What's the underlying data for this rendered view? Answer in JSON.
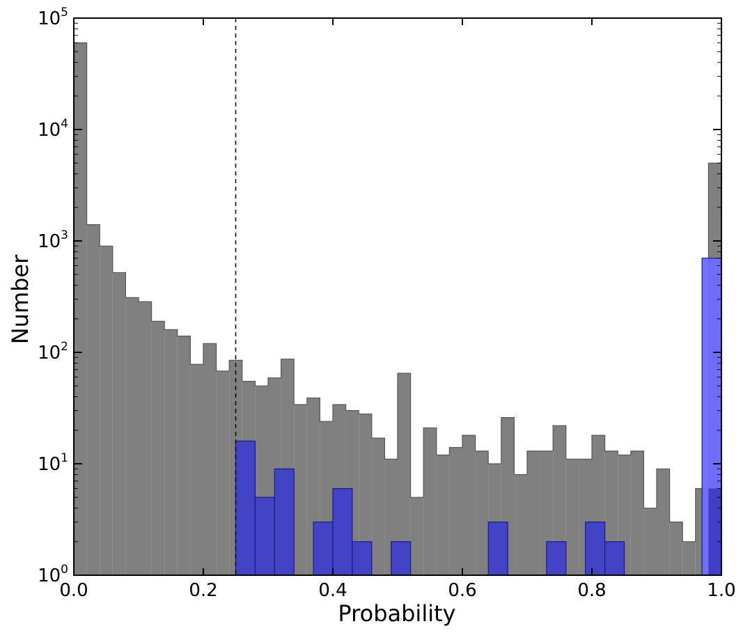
{
  "chart_data": {
    "type": "bar",
    "title": "",
    "xlabel": "Probability",
    "ylabel": "Number",
    "xlim": [
      0.0,
      1.0
    ],
    "ylim": [
      1,
      100000
    ],
    "yscale": "log",
    "grid": false,
    "legend": "none",
    "bin_width": 0.02,
    "x_ticks": [
      "0.0",
      "0.2",
      "0.4",
      "0.6",
      "0.8",
      "1.0"
    ],
    "y_ticks": [
      {
        "base": "10",
        "exp": "0"
      },
      {
        "base": "10",
        "exp": "1"
      },
      {
        "base": "10",
        "exp": "2"
      },
      {
        "base": "10",
        "exp": "3"
      },
      {
        "base": "10",
        "exp": "4"
      },
      {
        "base": "10",
        "exp": "5"
      }
    ],
    "threshold_line": {
      "x": 0.25,
      "style": "dashed"
    },
    "series": [
      {
        "color": "#808080",
        "edge": "#555555",
        "values": [
          60000,
          1400,
          900,
          520,
          310,
          285,
          190,
          160,
          140,
          78,
          120,
          68,
          85,
          55,
          50,
          59,
          87,
          34,
          39,
          24,
          34,
          30,
          28,
          17,
          11,
          65,
          5,
          21,
          12,
          14,
          18,
          13,
          10,
          26,
          8,
          13,
          13,
          22,
          11,
          11,
          18,
          13,
          12,
          13,
          4,
          9,
          3,
          2,
          6,
          5000
        ]
      },
      {
        "color": "#3f3fc8",
        "edge": "#1a1a80",
        "values": [
          0,
          0,
          0,
          0,
          0,
          0,
          0,
          0,
          0,
          0,
          0,
          0,
          0,
          0,
          0,
          16,
          5,
          9,
          0,
          3,
          6,
          2,
          0,
          2,
          0,
          0,
          0,
          0,
          3,
          0,
          0,
          2,
          0,
          3,
          2,
          0,
          0,
          0,
          0,
          0,
          0,
          0,
          0,
          0,
          0,
          0,
          0,
          0,
          0,
          700
        ],
        "bins_start": 0.25,
        "bin_width_overlay": 0.03
      }
    ]
  }
}
